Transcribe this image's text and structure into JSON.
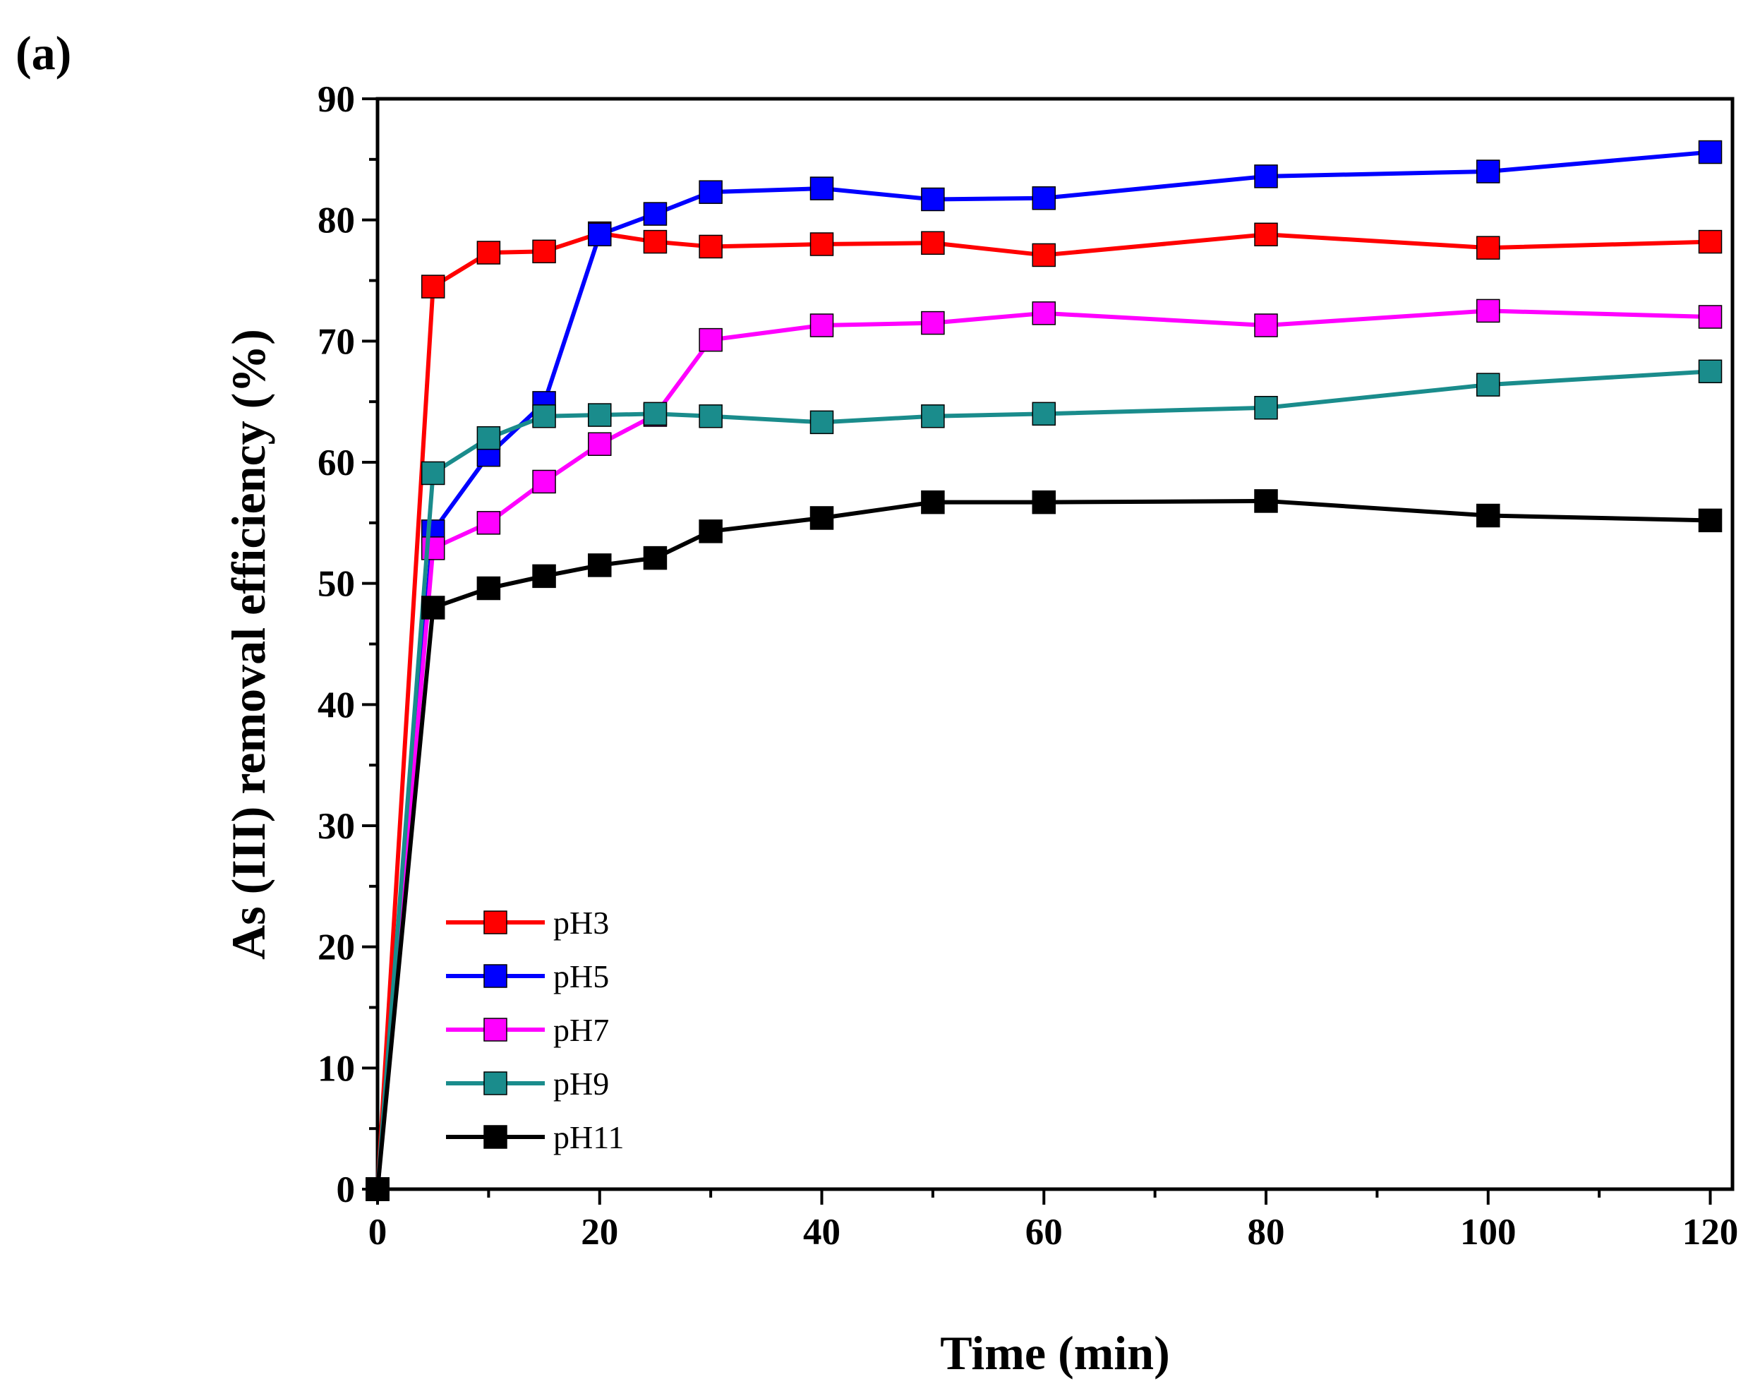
{
  "panel_label": "(a)",
  "chart_data": {
    "type": "line",
    "title": "",
    "xlabel": "Time (min)",
    "ylabel": "As (III) removal efficiency (%)",
    "xlim": [
      0,
      122
    ],
    "ylim": [
      0,
      90
    ],
    "x_ticks": [
      0,
      20,
      40,
      60,
      80,
      100,
      120
    ],
    "y_ticks": [
      0,
      10,
      20,
      30,
      40,
      50,
      60,
      70,
      80,
      90
    ],
    "grid": false,
    "legend_position": "lower-left",
    "marker": "square",
    "x": [
      0,
      5,
      10,
      15,
      20,
      25,
      30,
      40,
      50,
      60,
      80,
      100,
      120
    ],
    "series": [
      {
        "name": "pH3",
        "color": "#ff0000",
        "values": [
          0,
          74.5,
          77.3,
          77.4,
          78.9,
          78.2,
          77.8,
          78.0,
          78.1,
          77.1,
          78.8,
          77.7,
          78.2
        ]
      },
      {
        "name": "pH5",
        "color": "#0000ff",
        "values": [
          0,
          54.3,
          60.6,
          64.9,
          78.8,
          80.5,
          82.3,
          82.6,
          81.7,
          81.8,
          83.6,
          84.0,
          85.6
        ]
      },
      {
        "name": "pH7",
        "color": "#ff00ff",
        "values": [
          0,
          52.9,
          55.0,
          58.4,
          61.5,
          63.9,
          70.1,
          71.3,
          71.5,
          72.3,
          71.3,
          72.5,
          72.0
        ]
      },
      {
        "name": "pH9",
        "color": "#1a8c8c",
        "values": [
          0,
          59.1,
          62.0,
          63.8,
          63.9,
          64.0,
          63.8,
          63.3,
          63.8,
          64.0,
          64.5,
          66.4,
          67.5
        ]
      },
      {
        "name": "pH11",
        "color": "#000000",
        "values": [
          0,
          48.0,
          49.6,
          50.6,
          51.5,
          52.1,
          54.3,
          55.4,
          56.7,
          56.7,
          56.8,
          55.6,
          55.2
        ]
      }
    ]
  }
}
